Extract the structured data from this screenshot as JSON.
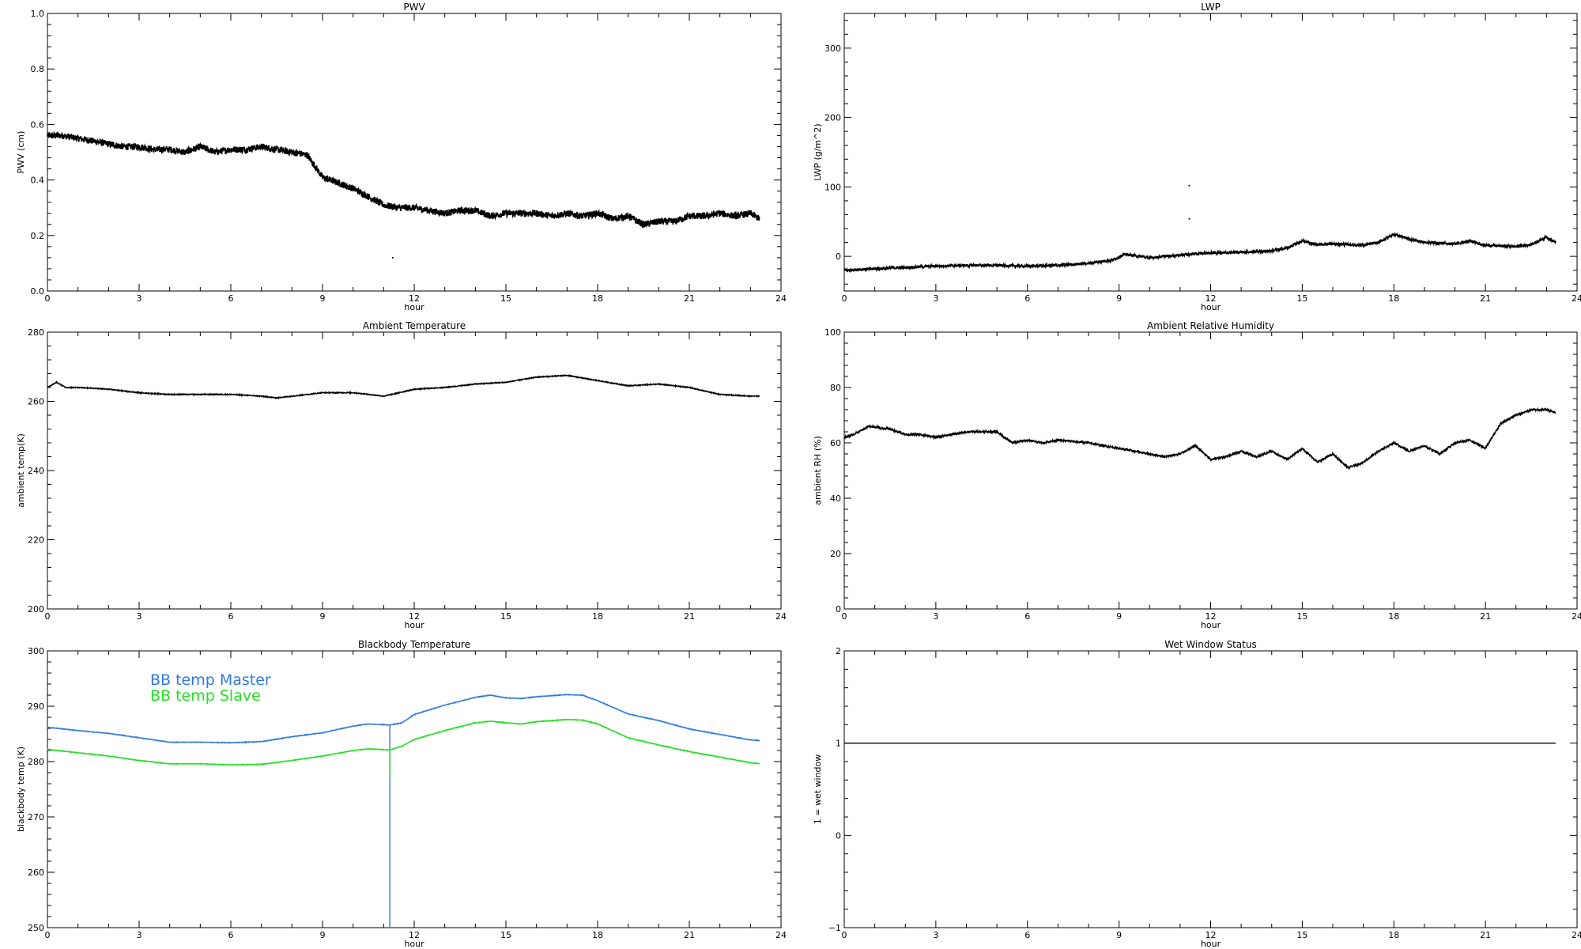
{
  "chart_data": [
    {
      "type": "line",
      "title": "PWV",
      "xlabel": "hour",
      "ylabel": "PWV (cm)",
      "xlim": [
        0,
        24
      ],
      "xticks": [
        0,
        3,
        6,
        9,
        12,
        15,
        18,
        21,
        24
      ],
      "xtick_labels": [
        "0",
        "3",
        "6",
        "9",
        "12",
        "15",
        "18",
        "21",
        "24"
      ],
      "ylim": [
        0.0,
        1.0
      ],
      "yticks": [
        0.0,
        0.2,
        0.4,
        0.6,
        0.8,
        1.0
      ],
      "ytick_labels": [
        "0.0",
        "0.2",
        "0.4",
        "0.6",
        "0.8",
        "1.0"
      ],
      "noise": 0.012,
      "series": [
        {
          "color": "#000000",
          "x": [
            0,
            0.5,
            1,
            1.5,
            2,
            2.5,
            3,
            3.5,
            4,
            4.5,
            5,
            5.5,
            6,
            6.5,
            7,
            7.5,
            8,
            8.5,
            9,
            9.5,
            10,
            10.5,
            11,
            11.5,
            12,
            12.5,
            13,
            13.5,
            14,
            14.5,
            15,
            15.5,
            16,
            16.5,
            17,
            17.5,
            18,
            18.5,
            19,
            19.5,
            20,
            20.5,
            21,
            21.5,
            22,
            22.5,
            23,
            23.3
          ],
          "y": [
            0.56,
            0.56,
            0.55,
            0.54,
            0.53,
            0.52,
            0.52,
            0.51,
            0.51,
            0.5,
            0.52,
            0.5,
            0.51,
            0.51,
            0.52,
            0.51,
            0.5,
            0.49,
            0.41,
            0.39,
            0.37,
            0.34,
            0.31,
            0.3,
            0.3,
            0.29,
            0.28,
            0.29,
            0.29,
            0.27,
            0.28,
            0.28,
            0.28,
            0.27,
            0.28,
            0.27,
            0.28,
            0.26,
            0.27,
            0.24,
            0.25,
            0.25,
            0.27,
            0.27,
            0.28,
            0.27,
            0.28,
            0.26
          ]
        }
      ],
      "extra_points": [
        {
          "x": 11.3,
          "y": 0.12
        }
      ]
    },
    {
      "type": "line",
      "title": "LWP",
      "xlabel": "hour",
      "ylabel": "LWP (g/m^2)",
      "xlim": [
        0,
        24
      ],
      "xticks": [
        0,
        3,
        6,
        9,
        12,
        15,
        18,
        21,
        24
      ],
      "xtick_labels": [
        "0",
        "3",
        "6",
        "9",
        "12",
        "15",
        "18",
        "21",
        "24"
      ],
      "ylim": [
        -50,
        350
      ],
      "yticks": [
        0,
        100,
        200,
        300
      ],
      "ytick_labels": [
        "0",
        "100",
        "200",
        "300"
      ],
      "noise": 1.8,
      "series": [
        {
          "color": "#000000",
          "x": [
            0,
            1,
            2,
            3,
            4,
            5,
            6,
            7,
            8,
            8.8,
            9.2,
            10,
            11,
            12,
            13,
            14,
            14.5,
            15,
            15.5,
            16,
            17,
            17.5,
            18,
            18.5,
            19,
            20,
            20.5,
            21,
            22,
            22.5,
            23,
            23.3
          ],
          "y": [
            -20,
            -18,
            -16,
            -14,
            -13,
            -13,
            -14,
            -13,
            -10,
            -5,
            3,
            -2,
            2,
            5,
            6,
            8,
            12,
            22,
            17,
            18,
            16,
            20,
            32,
            25,
            20,
            18,
            22,
            16,
            14,
            17,
            28,
            20
          ]
        }
      ],
      "extra_points": [
        {
          "x": 11.3,
          "y": 102
        },
        {
          "x": 11.3,
          "y": 54
        }
      ]
    },
    {
      "type": "line",
      "title": "Ambient Temperature",
      "xlabel": "hour",
      "ylabel": "ambient temp(K)",
      "xlim": [
        0,
        24
      ],
      "xticks": [
        0,
        3,
        6,
        9,
        12,
        15,
        18,
        21,
        24
      ],
      "xtick_labels": [
        "0",
        "3",
        "6",
        "9",
        "12",
        "15",
        "18",
        "21",
        "24"
      ],
      "ylim": [
        200,
        280
      ],
      "yticks": [
        200,
        220,
        240,
        260,
        280
      ],
      "ytick_labels": [
        "200",
        "220",
        "240",
        "260",
        "280"
      ],
      "noise": 0.12,
      "series": [
        {
          "color": "#000000",
          "x": [
            0,
            0.3,
            0.6,
            1,
            2,
            3,
            4,
            5,
            6,
            7,
            7.5,
            8,
            9,
            10,
            11,
            12,
            13,
            14,
            15,
            16,
            17,
            18,
            19,
            20,
            21,
            22,
            23,
            23.3
          ],
          "y": [
            264,
            265.5,
            264,
            264,
            263.5,
            262.5,
            262,
            262,
            262,
            261.5,
            261,
            261.5,
            262.5,
            262.5,
            261.5,
            263.5,
            264,
            265,
            265.5,
            267,
            267.5,
            266,
            264.5,
            265,
            264,
            262,
            261.5,
            261.5
          ]
        }
      ]
    },
    {
      "type": "line",
      "title": "Ambient Relative Humidity",
      "xlabel": "hour",
      "ylabel": "ambient RH (%)",
      "xlim": [
        0,
        24
      ],
      "xticks": [
        0,
        3,
        6,
        9,
        12,
        15,
        18,
        21,
        24
      ],
      "xtick_labels": [
        "0",
        "3",
        "6",
        "9",
        "12",
        "15",
        "18",
        "21",
        "24"
      ],
      "ylim": [
        0,
        100
      ],
      "yticks": [
        0,
        20,
        40,
        60,
        80,
        100
      ],
      "ytick_labels": [
        "0",
        "20",
        "40",
        "60",
        "80",
        "100"
      ],
      "noise": 0.35,
      "series": [
        {
          "color": "#000000",
          "x": [
            0,
            0.3,
            0.8,
            1.5,
            2,
            2.5,
            3,
            4,
            5,
            5.5,
            6,
            6.5,
            7,
            8,
            9,
            10,
            10.5,
            11,
            11.5,
            12,
            12.5,
            13,
            13.5,
            14,
            14.5,
            15,
            15.5,
            16,
            16.5,
            17,
            17.5,
            18,
            18.5,
            19,
            19.5,
            20,
            20.5,
            21,
            21.5,
            22,
            22.5,
            23,
            23.3
          ],
          "y": [
            62,
            63,
            66,
            65,
            63,
            63,
            62,
            64,
            64,
            60,
            61,
            60,
            61,
            60,
            58,
            56,
            55,
            56,
            59,
            54,
            55,
            57,
            55,
            57,
            54,
            58,
            53,
            56,
            51,
            53,
            57,
            60,
            57,
            59,
            56,
            60,
            61,
            58,
            67,
            70,
            72,
            72,
            71
          ]
        }
      ]
    },
    {
      "type": "line",
      "title": "Blackbody Temperature",
      "xlabel": "hour",
      "ylabel": "blackbody temp (K)",
      "xlim": [
        0,
        24
      ],
      "xticks": [
        0,
        3,
        6,
        9,
        12,
        15,
        18,
        21,
        24
      ],
      "xtick_labels": [
        "0",
        "3",
        "6",
        "9",
        "12",
        "15",
        "18",
        "21",
        "24"
      ],
      "ylim": [
        250,
        300
      ],
      "yticks": [
        250,
        260,
        270,
        280,
        290,
        300
      ],
      "ytick_labels": [
        "250",
        "260",
        "270",
        "280",
        "290",
        "300"
      ],
      "noise": 0.05,
      "legend": "top-left",
      "series": [
        {
          "name": "BB temp Master",
          "color": "#2f7ae5",
          "x": [
            0,
            1,
            2,
            3,
            4,
            5,
            6,
            7,
            8,
            9,
            10,
            10.5,
            11.2,
            11.2,
            11.2,
            11.6,
            12,
            13,
            14,
            14.5,
            15,
            15.5,
            16,
            17,
            17.5,
            18,
            19,
            20,
            21,
            22,
            23,
            23.3
          ],
          "y": [
            286.2,
            285.6,
            285.1,
            284.3,
            283.5,
            283.5,
            283.4,
            283.6,
            284.5,
            285.2,
            286.4,
            286.8,
            286.6,
            250,
            286.6,
            287,
            288.5,
            290.2,
            291.6,
            292,
            291.5,
            291.4,
            291.7,
            292.1,
            292,
            291,
            288.6,
            287.4,
            285.9,
            284.9,
            283.9,
            283.8
          ]
        },
        {
          "name": "BB temp Slave",
          "color": "#22e022",
          "x": [
            0,
            1,
            2,
            3,
            4,
            5,
            6,
            7,
            8,
            9,
            10,
            10.5,
            11.2,
            11.2,
            11.2,
            11.6,
            12,
            13,
            14,
            14.5,
            15,
            15.5,
            16,
            17,
            17.5,
            18,
            19,
            20,
            21,
            22,
            23,
            23.3
          ],
          "y": [
            282.2,
            281.6,
            281,
            280.2,
            279.6,
            279.6,
            279.4,
            279.5,
            280.2,
            281,
            282,
            282.3,
            282.1,
            277,
            282.1,
            282.8,
            284,
            285.6,
            287,
            287.3,
            287,
            286.8,
            287.2,
            287.6,
            287.5,
            286.8,
            284.3,
            283,
            281.8,
            280.8,
            279.8,
            279.6
          ]
        }
      ]
    },
    {
      "type": "line",
      "title": "Wet Window Status",
      "xlabel": "hour",
      "ylabel": "1 = wet window",
      "xlim": [
        0,
        24
      ],
      "xticks": [
        0,
        3,
        6,
        9,
        12,
        15,
        18,
        21,
        24
      ],
      "xtick_labels": [
        "0",
        "3",
        "6",
        "9",
        "12",
        "15",
        "18",
        "21",
        "24"
      ],
      "ylim": [
        -1,
        2
      ],
      "yticks": [
        -1,
        0,
        1,
        2
      ],
      "ytick_labels": [
        "−1",
        "0",
        "1",
        "2"
      ],
      "noise": 0,
      "series": [
        {
          "color": "#000000",
          "x": [
            0,
            23.3
          ],
          "y": [
            1,
            1
          ]
        }
      ]
    }
  ]
}
